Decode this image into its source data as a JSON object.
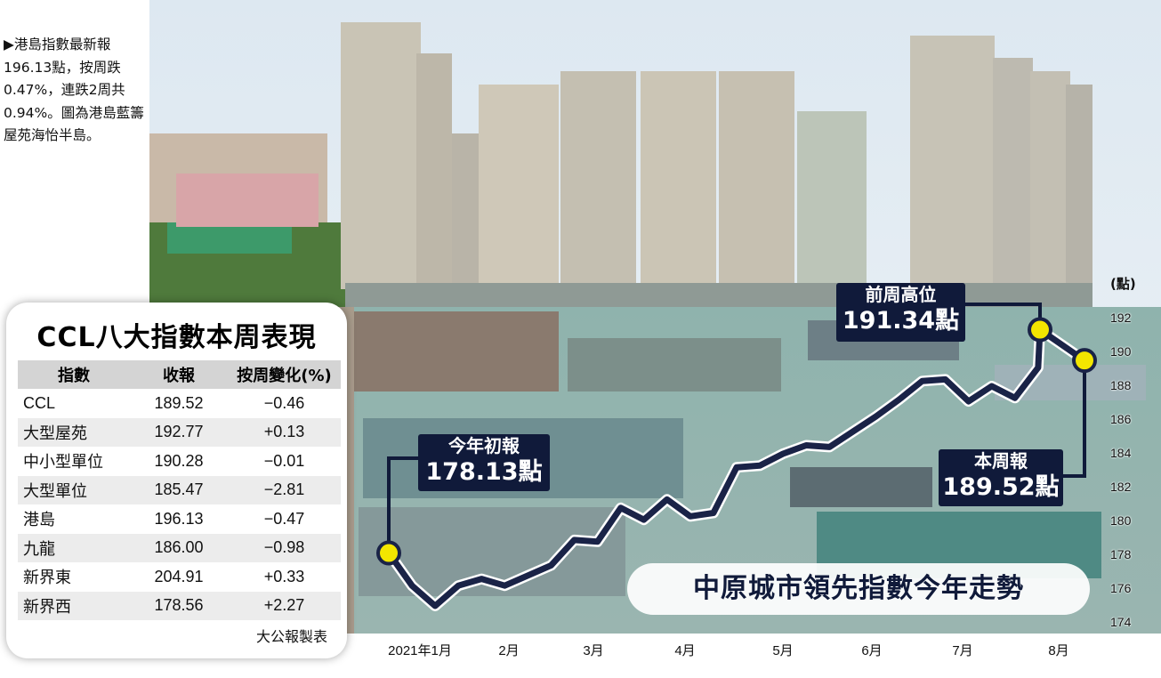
{
  "caption": "▶港島指數最新報196.13點，按周跌0.47%，連跌2周共0.94%。圖為港島藍籌屋苑海怡半島。",
  "table": {
    "title": "CCL八大指數本周表現",
    "headers": [
      "指數",
      "收報",
      "按周變化(%)"
    ],
    "rows": [
      [
        "CCL",
        "189.52",
        "−0.46"
      ],
      [
        "大型屋苑",
        "192.77",
        "+0.13"
      ],
      [
        "中小型單位",
        "190.28",
        "−0.01"
      ],
      [
        "大型單位",
        "185.47",
        "−2.81"
      ],
      [
        "港島",
        "196.13",
        "−0.47"
      ],
      [
        "九龍",
        "186.00",
        "−0.98"
      ],
      [
        "新界東",
        "204.91",
        "+0.33"
      ],
      [
        "新界西",
        "178.56",
        "+2.27"
      ]
    ],
    "source": "大公報製表"
  },
  "chart_data": {
    "type": "line",
    "title": "中原城市領先指數今年走勢",
    "ylabel": "(點)",
    "ylim": [
      174,
      193
    ],
    "yticks": [
      174,
      176,
      178,
      180,
      182,
      184,
      186,
      188,
      190,
      192
    ],
    "xticks": [
      "2021年1月",
      "2月",
      "3月",
      "4月",
      "5月",
      "6月",
      "7月",
      "8月"
    ],
    "series": [
      {
        "values": [
          178.13,
          176.2,
          175.0,
          176.2,
          176.6,
          176.2,
          176.8,
          177.4,
          178.9,
          178.8,
          180.8,
          180.1,
          181.3,
          180.3,
          180.5,
          183.2,
          183.3,
          184.0,
          184.5,
          184.4,
          185.3,
          186.2,
          187.2,
          188.3,
          188.4,
          187.1,
          188.0,
          187.3,
          189.1,
          191.34,
          189.52
        ]
      }
    ],
    "annotations": [
      {
        "label": "今年初報",
        "value": "178.13點"
      },
      {
        "label": "前周高位",
        "value": "191.34點"
      },
      {
        "label": "本周報",
        "value": "189.52點"
      }
    ]
  },
  "colors": {
    "line": "#1a2347",
    "marker": "#f3e600",
    "callout_bg": "#101a3a",
    "sky": "#cfe0ee",
    "water": "#7fa8a3"
  }
}
